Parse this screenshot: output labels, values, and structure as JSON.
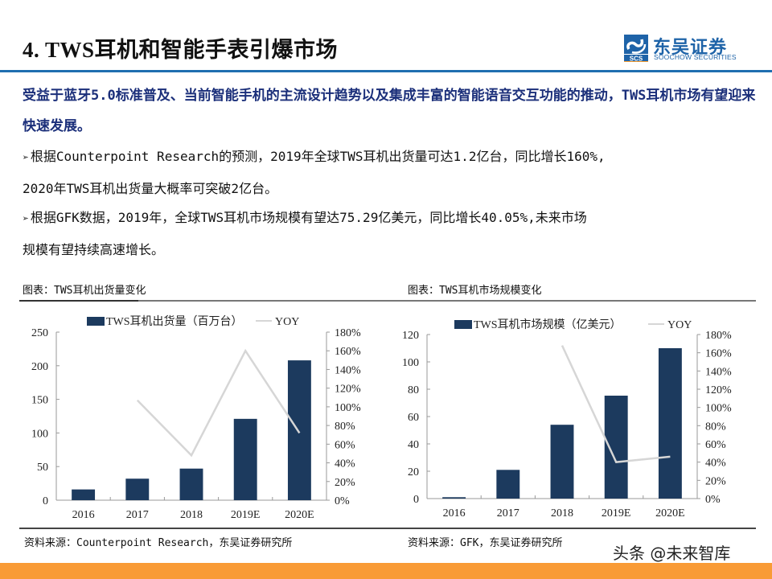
{
  "header": {
    "title": "4. TWS耳机和智能手表引爆市场",
    "logo": {
      "cn": "东吴证券",
      "en": "SOOCHOW SECURITIES",
      "mark_text": "SCS",
      "colors": {
        "primary": "#1e63a8",
        "accent": "#f29a2e"
      }
    },
    "rule_color": "#1f6fb0"
  },
  "body": {
    "lead": "受益于蓝牙5.0标准普及、当前智能手机的主流设计趋势以及集成丰富的智能语音交互功能的推动，TWS耳机市场有望迎来快速发展。",
    "bullets": [
      {
        "marker": "➢",
        "line1": "根据Counterpoint Research的预测，2019年全球TWS耳机出货量可达1.2亿台，同比增长160%,",
        "line2": "2020年TWS耳机出货量大概率可突破2亿台。"
      },
      {
        "marker": "➢",
        "line1": "根据GFK数据，2019年，全球TWS耳机市场规模有望达75.29亿美元，同比增长40.05%,未来市场",
        "line2": "规模有望持续高速增长。"
      }
    ]
  },
  "figures": [
    {
      "caption": "图表：TWS耳机出货量变化",
      "source": "资料来源：Counterpoint Research，东吴证券研究所"
    },
    {
      "caption": "图表：TWS耳机市场规模变化",
      "source": "资料来源：GFK，东吴证券研究所"
    }
  ],
  "chart_data": [
    {
      "type": "bar",
      "title": "TWS耳机出货量变化",
      "categories": [
        "2016",
        "2017",
        "2018",
        "2019E",
        "2020E"
      ],
      "series": [
        {
          "name": "TWS耳机出货量（百万台）",
          "type": "bar",
          "axis": "left",
          "color": "#1c3a5e",
          "values": [
            16,
            32,
            47,
            121,
            208
          ]
        },
        {
          "name": "YOY",
          "type": "line",
          "axis": "right",
          "color": "#d6d6d6",
          "values": [
            null,
            1.07,
            0.48,
            1.6,
            0.72
          ]
        }
      ],
      "left_axis": {
        "min": 0,
        "max": 250,
        "ticks": [
          "0",
          "50",
          "100",
          "150",
          "200",
          "250"
        ]
      },
      "right_axis": {
        "min": 0,
        "max": 1.8,
        "ticks": [
          "0%",
          "20%",
          "40%",
          "60%",
          "80%",
          "100%",
          "120%",
          "140%",
          "160%",
          "180%"
        ]
      },
      "legend_position": "top",
      "grid": false
    },
    {
      "type": "bar",
      "title": "TWS耳机市场规模变化",
      "categories": [
        "2016",
        "2017",
        "2018",
        "2019E",
        "2020E"
      ],
      "series": [
        {
          "name": "TWS耳机市场规模（亿美元）",
          "type": "bar",
          "axis": "left",
          "color": "#1c3a5e",
          "values": [
            1,
            21,
            54,
            75.29,
            110
          ]
        },
        {
          "name": "YOY",
          "type": "line",
          "axis": "right",
          "color": "#d6d6d6",
          "values": [
            null,
            null,
            1.68,
            0.4005,
            0.46
          ]
        }
      ],
      "left_axis": {
        "min": 0,
        "max": 120,
        "ticks": [
          "0",
          "20",
          "40",
          "60",
          "80",
          "100",
          "120"
        ]
      },
      "right_axis": {
        "min": 0,
        "max": 1.8,
        "ticks": [
          "0%",
          "20%",
          "40%",
          "60%",
          "80%",
          "100%",
          "120%",
          "140%",
          "160%",
          "180%"
        ]
      },
      "legend_position": "top",
      "grid": false
    }
  ],
  "watermark": "头条 @未来智库",
  "footer": {
    "color": "#f99b36"
  }
}
